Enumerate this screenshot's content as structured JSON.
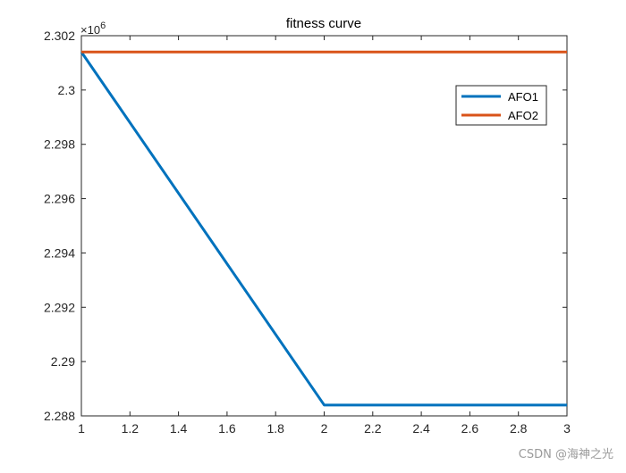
{
  "chart_data": {
    "type": "line",
    "title": "fitness curve",
    "xlabel": "",
    "ylabel": "",
    "exponent_label": "×10",
    "exponent_power": "6",
    "xlim": [
      1,
      3
    ],
    "ylim": [
      2.288,
      2.302
    ],
    "x_ticks": [
      "1",
      "1.2",
      "1.4",
      "1.6",
      "1.8",
      "2",
      "2.2",
      "2.4",
      "2.6",
      "2.8",
      "3"
    ],
    "y_ticks": [
      "2.288",
      "2.29",
      "2.292",
      "2.294",
      "2.296",
      "2.298",
      "2.3",
      "2.302"
    ],
    "grid": false,
    "legend_position": "top-right",
    "series": [
      {
        "name": "AFO1",
        "color": "#0072BD",
        "x": [
          1,
          2,
          3
        ],
        "y": [
          2.3014,
          2.2884,
          2.2884
        ]
      },
      {
        "name": "AFO2",
        "color": "#D95319",
        "x": [
          1,
          2,
          3
        ],
        "y": [
          2.3014,
          2.3014,
          2.3014
        ]
      }
    ]
  },
  "watermark": "CSDN @海神之光"
}
